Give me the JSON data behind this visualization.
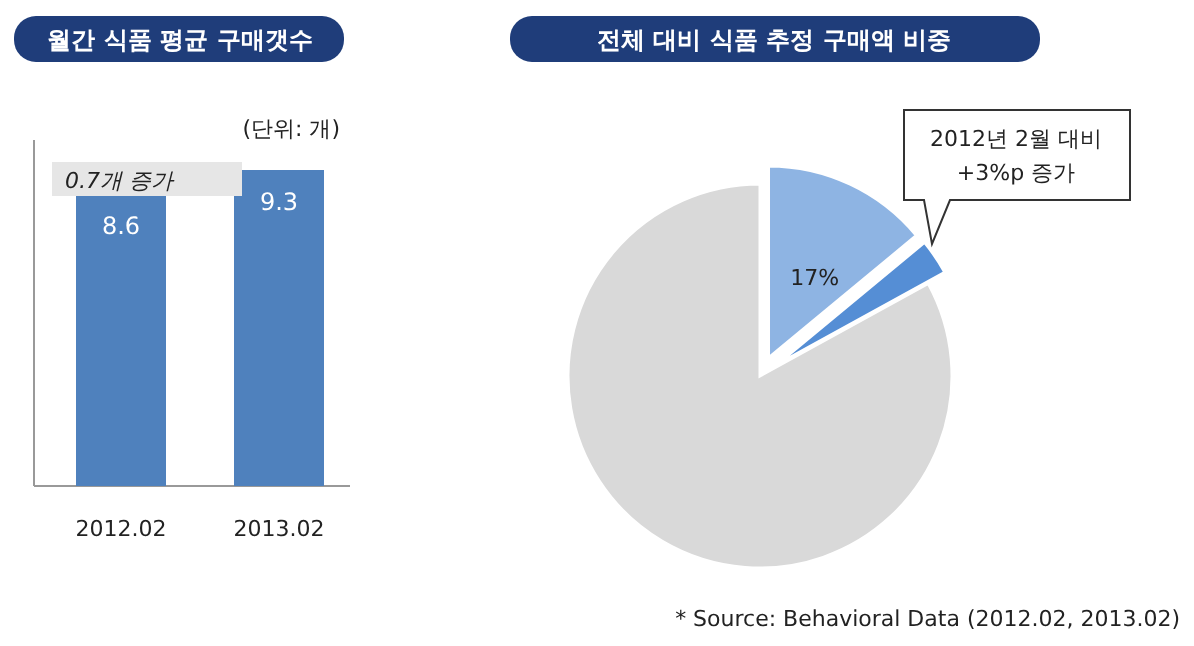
{
  "chart_data": [
    {
      "type": "bar",
      "title": "월간 식품 평균 구매갯수",
      "categories": [
        "2012.02",
        "2013.02"
      ],
      "values": [
        8.6,
        9.3
      ],
      "color": "#4f81bd",
      "data_labels": true,
      "annotations": [
        "(단위: 개)",
        "0.7개 증가"
      ]
    },
    {
      "type": "pie",
      "title": "전체 대비 식품 추정 구매액 비중",
      "categories": [
        null,
        null,
        null
      ],
      "values": [
        14,
        3,
        83
      ],
      "colors": [
        "#8eb4e3",
        "#558ed5",
        "#d9d9d9"
      ],
      "annotations": [
        "17%",
        "2012년 2월 대비\n+3%p 증가",
        "* Source: Behavioral Data (2012.02,  2013.02)"
      ]
    }
  ]
}
